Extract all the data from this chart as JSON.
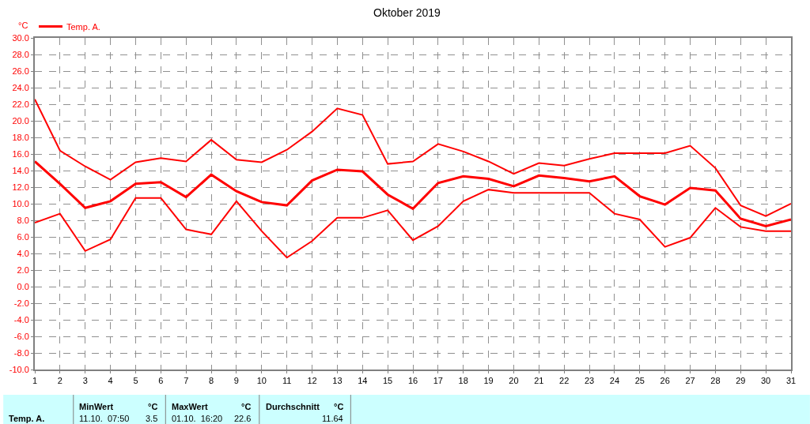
{
  "chart_data": {
    "type": "line",
    "title": "Oktober 2019",
    "ylabel": "°C",
    "x": [
      1,
      2,
      3,
      4,
      5,
      6,
      7,
      8,
      9,
      10,
      11,
      12,
      13,
      14,
      15,
      16,
      17,
      18,
      19,
      20,
      21,
      22,
      23,
      24,
      25,
      26,
      27,
      28,
      29,
      30,
      31
    ],
    "series": [
      {
        "name": "Temp. A.",
        "color": "#ff0000",
        "values": [
          15.1,
          12.4,
          9.5,
          10.3,
          12.4,
          12.6,
          10.8,
          13.5,
          11.5,
          10.2,
          9.8,
          12.8,
          14.1,
          13.9,
          11.1,
          9.4,
          12.5,
          13.3,
          13.0,
          12.1,
          13.4,
          13.1,
          12.7,
          13.3,
          10.9,
          9.9,
          11.9,
          11.6,
          8.2,
          7.3,
          8.1
        ]
      },
      {
        "color": "#ff0000",
        "values": [
          22.6,
          16.4,
          14.5,
          12.9,
          15.0,
          15.5,
          15.1,
          17.7,
          15.3,
          15.0,
          16.5,
          18.7,
          21.5,
          20.7,
          14.8,
          15.1,
          17.2,
          16.3,
          15.1,
          13.6,
          14.9,
          14.6,
          15.4,
          16.1,
          16.1,
          16.1,
          17.0,
          14.3,
          9.8,
          8.5,
          10.0
        ]
      },
      {
        "color": "#ff0000",
        "values": [
          7.7,
          8.8,
          4.3,
          5.7,
          10.7,
          10.7,
          6.9,
          6.3,
          10.3,
          6.7,
          3.5,
          5.5,
          8.3,
          8.3,
          9.2,
          5.6,
          7.3,
          10.3,
          11.7,
          11.3,
          11.3,
          11.3,
          11.3,
          8.8,
          8.1,
          4.8,
          5.9,
          9.5,
          7.2,
          6.7,
          6.7
        ]
      }
    ],
    "xlim": [
      1,
      31
    ],
    "xticks": [
      1,
      2,
      3,
      4,
      5,
      6,
      7,
      8,
      9,
      10,
      11,
      12,
      13,
      14,
      15,
      16,
      17,
      18,
      19,
      20,
      21,
      22,
      23,
      24,
      25,
      26,
      27,
      28,
      29,
      30,
      31
    ],
    "ylim": [
      -10,
      30
    ],
    "yticks": [
      {
        "value": -10,
        "label": "-10.0"
      },
      {
        "value": -8,
        "label": "-8.0"
      },
      {
        "value": -6,
        "label": "-6.0"
      },
      {
        "value": -4,
        "label": "-4.0"
      },
      {
        "value": -2,
        "label": "-2.0"
      },
      {
        "value": 0,
        "label": "0.0"
      },
      {
        "value": 2,
        "label": "2.0"
      },
      {
        "value": 4,
        "label": "4.0"
      },
      {
        "value": 6,
        "label": "6.0"
      },
      {
        "value": 8,
        "label": "8.0"
      },
      {
        "value": 10,
        "label": "10.0"
      },
      {
        "value": 12,
        "label": "12.0"
      },
      {
        "value": 14,
        "label": "14.0"
      },
      {
        "value": 16,
        "label": "16.0"
      },
      {
        "value": 18,
        "label": "18.0"
      },
      {
        "value": 20,
        "label": "20.0"
      },
      {
        "value": 22,
        "label": "22.0"
      },
      {
        "value": 24,
        "label": "24.0"
      },
      {
        "value": 26,
        "label": "26.0"
      },
      {
        "value": 28,
        "label": "28.0"
      },
      {
        "value": 30,
        "label": "30.0"
      }
    ],
    "grid": true,
    "legend": "top left",
    "marker": "none",
    "line_style": "solid",
    "annotations": [
      "Temp. A.",
      "MinWert",
      "°C",
      "11.10.  07:50",
      "3.5",
      "MaxWert",
      "°C",
      "01.10.  16:20",
      "22.6",
      "Durchschnitt",
      "°C",
      "11.64"
    ]
  }
}
